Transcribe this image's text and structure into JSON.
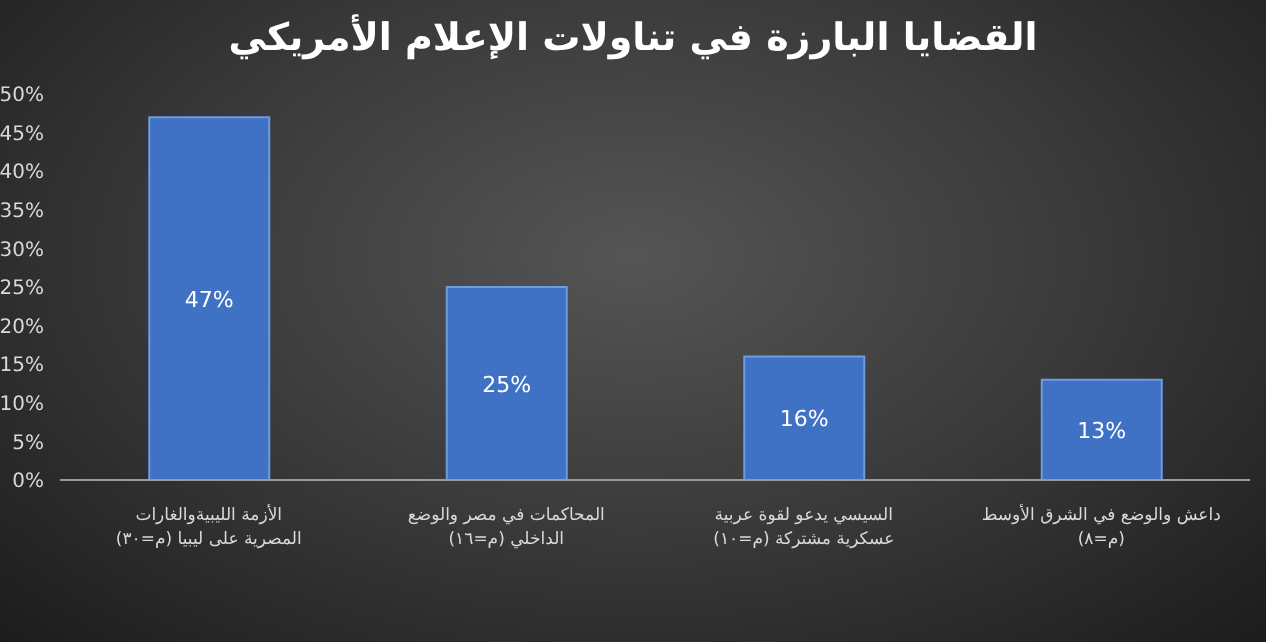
{
  "chart_data": {
    "type": "bar",
    "title": "القضايا البارزة في تناولات الإعلام الأمريكي",
    "categories": [
      "الأزمة الليبيةوالغارات المصرية على ليبيا (م=٣٠)",
      "المحاكمات في مصر والوضع الداخلي (م=١٦)",
      "السيسي يدعو لقوة عربية عسكرية مشتركة (م=١٠)",
      "داعش والوضع في الشرق الأوسط (م=٨)"
    ],
    "values": [
      47,
      25,
      16,
      13
    ],
    "color": "#3f72c4",
    "value_labels": [
      "47%",
      "25%",
      "16%",
      "13%"
    ],
    "ylim": [
      0,
      50
    ],
    "yticks": [
      {
        "value": 0,
        "label": "0%"
      },
      {
        "value": 5,
        "label": "5%"
      },
      {
        "value": 10,
        "label": "10%"
      },
      {
        "value": 15,
        "label": "15%"
      },
      {
        "value": 20,
        "label": "20%"
      },
      {
        "value": 25,
        "label": "25%"
      },
      {
        "value": 30,
        "label": "30%"
      },
      {
        "value": 35,
        "label": "35%"
      },
      {
        "value": 40,
        "label": "40%"
      },
      {
        "value": 45,
        "label": "45%"
      },
      {
        "value": 50,
        "label": "50%"
      }
    ],
    "grid": false
  }
}
